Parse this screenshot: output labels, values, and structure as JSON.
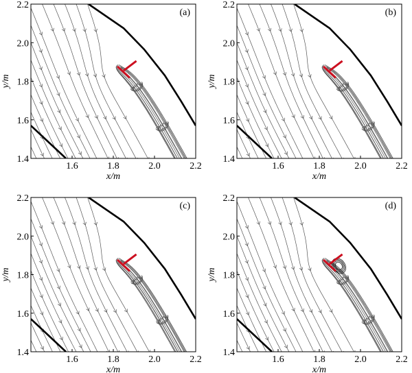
{
  "colors": {
    "streamline": "#555555",
    "wall": "#000000",
    "body": "#cc1020",
    "frame": "#000000"
  },
  "chart_data": [
    {
      "type": "streamline",
      "panel_label": "(a)",
      "xlabel": "x/m",
      "ylabel": "y/m",
      "xlim": [
        1.4,
        2.2
      ],
      "ylim": [
        1.4,
        2.2
      ],
      "xticks": [
        "1.6",
        "1.8",
        "2.0",
        "2.2"
      ],
      "yticks": [
        "1.4",
        "1.6",
        "1.8",
        "2.0",
        "2.2"
      ],
      "recirculation": false
    },
    {
      "type": "streamline",
      "panel_label": "(b)",
      "xlabel": "x/m",
      "ylabel": "y/m",
      "xlim": [
        1.4,
        2.2
      ],
      "ylim": [
        1.4,
        2.2
      ],
      "xticks": [
        "1.6",
        "1.8",
        "2.0",
        "2.2"
      ],
      "yticks": [
        "1.4",
        "1.6",
        "1.8",
        "2.0",
        "2.2"
      ],
      "recirculation": false
    },
    {
      "type": "streamline",
      "panel_label": "(c)",
      "xlabel": "x/m",
      "ylabel": "y/m",
      "xlim": [
        1.4,
        2.2
      ],
      "ylim": [
        1.4,
        2.2
      ],
      "xticks": [
        "1.6",
        "1.8",
        "2.0",
        "2.2"
      ],
      "yticks": [
        "1.4",
        "1.6",
        "1.8",
        "2.0",
        "2.2"
      ],
      "recirculation": false
    },
    {
      "type": "streamline",
      "panel_label": "(d)",
      "xlabel": "x/m",
      "ylabel": "y/m",
      "xlim": [
        1.4,
        2.2
      ],
      "ylim": [
        1.4,
        2.2
      ],
      "xticks": [
        "1.6",
        "1.8",
        "2.0",
        "2.2"
      ],
      "yticks": [
        "1.4",
        "1.6",
        "1.8",
        "2.0",
        "2.2"
      ],
      "recirculation": true
    }
  ]
}
